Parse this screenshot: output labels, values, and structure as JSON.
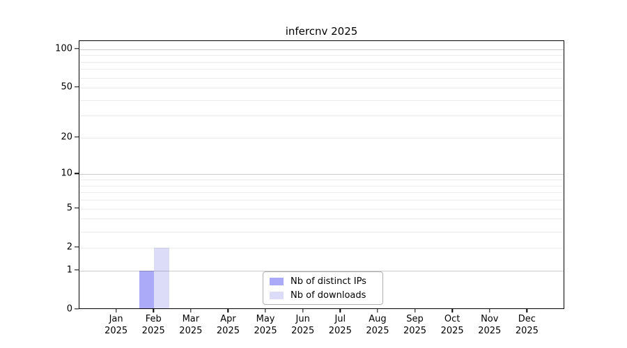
{
  "title": "infercnv 2025",
  "chart_data": {
    "type": "bar",
    "title": "infercnv 2025",
    "categories": [
      "Jan",
      "Feb",
      "Mar",
      "Apr",
      "May",
      "Jun",
      "Jul",
      "Aug",
      "Sep",
      "Oct",
      "Nov",
      "Dec"
    ],
    "category_year": "2025",
    "series": [
      {
        "name": "Nb of distinct IPs",
        "color": "#aaaaf8",
        "values": [
          0,
          1,
          0,
          0,
          0,
          0,
          0,
          0,
          0,
          0,
          0,
          0
        ]
      },
      {
        "name": "Nb of downloads",
        "color": "#dcdcf8",
        "values": [
          0,
          2,
          0,
          0,
          0,
          0,
          0,
          0,
          0,
          0,
          0,
          0
        ]
      }
    ],
    "xlabel": "",
    "ylabel": "",
    "y_scale": "log1p",
    "y_axis_max": 115.6,
    "y_ticks": [
      0,
      1,
      2,
      5,
      10,
      20,
      50,
      100
    ],
    "grid_minor": [
      2,
      3,
      4,
      5,
      6,
      7,
      8,
      9,
      20,
      30,
      40,
      50,
      60,
      70,
      80,
      90
    ],
    "grid_major": [
      1,
      10,
      100
    ],
    "grid_on": true,
    "legend": {
      "position": "bottom-center",
      "items": [
        "Nb of distinct IPs",
        "Nb of downloads"
      ]
    }
  }
}
